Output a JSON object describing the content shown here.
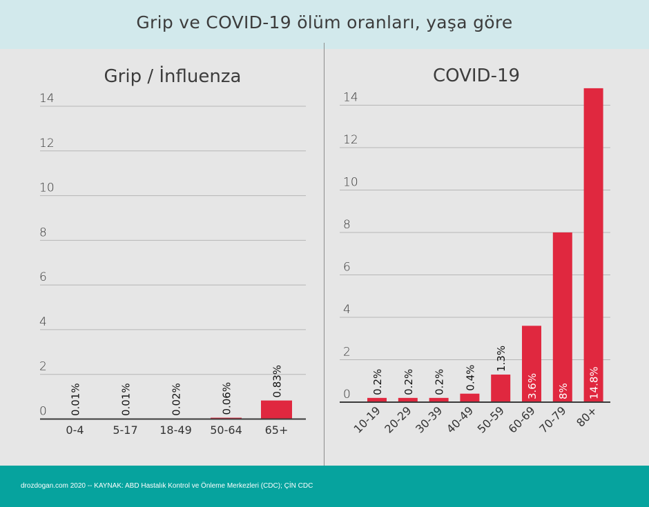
{
  "page": {
    "title": "Grip ve COVID-19 ölüm oranları, yaşa göre",
    "footer": "drozdogan.com 2020 -- KAYNAK: ABD Hastalık Kontrol ve Önleme Merkezleri (CDC); ÇİN CDC"
  },
  "colors": {
    "bar": "#e0283f",
    "header_bg": "#d2e9ec",
    "footer_bg": "#06a39e",
    "plot_bg": "#e6e6e6",
    "grid": "#b5b5b5"
  },
  "chart_data": [
    {
      "type": "bar",
      "title": "Grip / İnfluenza",
      "categories": [
        "0-4",
        "5-17",
        "18-49",
        "50-64",
        "65+"
      ],
      "values": [
        0.01,
        0.01,
        0.02,
        0.06,
        0.83
      ],
      "data_labels": [
        "0.01%",
        "0.01%",
        "0.02%",
        "0.06%",
        "0.83%"
      ],
      "yticks": [
        "0",
        "2",
        "4",
        "6",
        "8",
        "10",
        "12",
        "14"
      ],
      "ylim": [
        0,
        14
      ],
      "grid": true
    },
    {
      "type": "bar",
      "title": "COVID-19",
      "categories": [
        "10-19",
        "20-29",
        "30-39",
        "40-49",
        "50-59",
        "60-69",
        "70-79",
        "80+"
      ],
      "values": [
        0.2,
        0.2,
        0.2,
        0.4,
        1.3,
        3.6,
        8,
        14.8
      ],
      "data_labels": [
        "0.2%",
        "0.2%",
        "0.2%",
        "0.4%",
        "1.3%",
        "3.6%",
        "8%",
        "14.8%"
      ],
      "yticks": [
        "0",
        "2",
        "4",
        "6",
        "8",
        "10",
        "12",
        "14"
      ],
      "ylim": [
        0,
        14
      ],
      "grid": true
    }
  ]
}
